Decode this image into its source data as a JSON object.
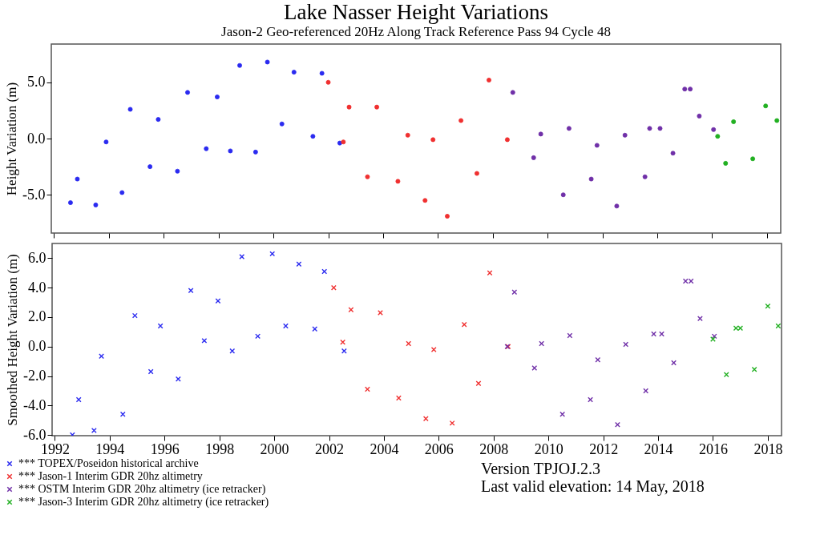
{
  "chart_data": [
    {
      "type": "scatter",
      "title": "Lake Nasser Height Variations",
      "subtitle": "Jason-2 Geo-referenced 20Hz Along Track Reference Pass  94 Cycle  48",
      "ylabel": "Height Variation (m)",
      "marker": "circle",
      "tick_labels": "y",
      "xlim": [
        1991.9,
        2018.5
      ],
      "xticks": [
        1992,
        1994,
        1996,
        1998,
        2000,
        2002,
        2004,
        2006,
        2008,
        2010,
        2012,
        2014,
        2016,
        2018
      ],
      "ylim": [
        -8.4,
        8.4
      ],
      "yticks": [
        {
          "value": -5,
          "label": "-5.0"
        },
        {
          "value": 0,
          "label": "0.0"
        },
        {
          "value": 5,
          "label": "5.0"
        }
      ],
      "series": [
        {
          "color": "#2b2bf0",
          "x": [
            1992.6,
            1992.85,
            1993.52,
            1993.9,
            1994.48,
            1994.78,
            1995.5,
            1995.8,
            1996.5,
            1996.87,
            1997.55,
            1997.95,
            1998.43,
            1998.77,
            1999.35,
            1999.78,
            2000.31,
            2000.75,
            2001.44,
            2001.77,
            2002.42
          ],
          "values": [
            -5.7,
            -3.6,
            -5.9,
            -0.3,
            -4.8,
            2.6,
            -2.5,
            1.7,
            -2.9,
            4.1,
            -0.9,
            3.7,
            -1.1,
            6.5,
            -1.2,
            6.8,
            1.3,
            5.9,
            0.2,
            5.8,
            -0.4
          ]
        },
        {
          "color": "#f03030",
          "x": [
            2002.0,
            2002.55,
            2002.76,
            2003.43,
            2003.77,
            2004.54,
            2004.9,
            2005.53,
            2005.82,
            2006.34,
            2006.84,
            2007.42,
            2007.86,
            2008.53
          ],
          "values": [
            5.0,
            -0.3,
            2.8,
            -3.4,
            2.8,
            -3.8,
            0.3,
            -5.5,
            -0.1,
            -6.9,
            1.6,
            -3.1,
            5.2,
            -0.1
          ]
        },
        {
          "color": "#7030a8",
          "x": [
            2008.73,
            2009.49,
            2009.75,
            2010.57,
            2010.78,
            2011.59,
            2011.8,
            2012.52,
            2012.82,
            2013.55,
            2013.72,
            2014.1,
            2014.57,
            2015.0,
            2015.2,
            2015.53,
            2016.05
          ],
          "values": [
            4.1,
            -1.7,
            0.4,
            -5.0,
            0.9,
            -3.6,
            -0.6,
            -6.0,
            0.3,
            -3.4,
            0.9,
            0.9,
            -1.3,
            4.4,
            4.4,
            2.0,
            0.8
          ]
        },
        {
          "color": "#22b022",
          "x": [
            2016.2,
            2016.49,
            2016.78,
            2017.48,
            2017.95,
            2018.36
          ],
          "values": [
            0.2,
            -2.2,
            1.5,
            -1.8,
            2.9,
            1.6
          ]
        }
      ]
    },
    {
      "type": "scatter",
      "ylabel": "Smoothed Height Variation (m)",
      "marker": "cross",
      "legend": "bottom left",
      "annotations": [
        "Version TPJOJ.2.3",
        "Last valid elevation: 14 May, 2018"
      ],
      "xlim": [
        1991.9,
        2018.5
      ],
      "xticks": [
        1992,
        1994,
        1996,
        1998,
        2000,
        2002,
        2004,
        2006,
        2008,
        2010,
        2012,
        2014,
        2016,
        2018
      ],
      "ylim": [
        -6.05,
        7.0
      ],
      "yticks": [
        {
          "value": -6,
          "label": "-6.0"
        },
        {
          "value": -4,
          "label": "-4.0"
        },
        {
          "value": -2,
          "label": "-2.0"
        },
        {
          "value": 0,
          "label": "0.0"
        },
        {
          "value": 2,
          "label": "2.0"
        },
        {
          "value": 4,
          "label": "4.0"
        },
        {
          "value": 6,
          "label": "6.0"
        }
      ],
      "series": [
        {
          "name": "*** TOPEX/Poseidon historical archive",
          "color": "#2b2bf0",
          "x": [
            1992.64,
            1992.87,
            1993.43,
            1993.7,
            1994.48,
            1994.92,
            1995.5,
            1995.85,
            1996.5,
            1996.96,
            1997.45,
            1997.95,
            1998.47,
            1998.82,
            1999.4,
            1999.93,
            2000.42,
            2000.9,
            2001.48,
            2001.83,
            2002.55
          ],
          "values": [
            -6.0,
            -3.6,
            -5.7,
            -0.65,
            -4.6,
            2.1,
            -1.7,
            1.4,
            -2.2,
            3.8,
            0.4,
            3.1,
            -0.3,
            6.1,
            0.7,
            6.3,
            1.4,
            5.6,
            1.2,
            5.1,
            -0.3
          ]
        },
        {
          "name": "*** Jason-1 Interim GDR 20hz altimetry",
          "color": "#f03030",
          "x": [
            2002.17,
            2002.5,
            2002.8,
            2003.4,
            2003.87,
            2004.54,
            2004.9,
            2005.53,
            2005.82,
            2006.49,
            2006.93,
            2007.45,
            2007.86,
            2008.53
          ],
          "values": [
            4.0,
            0.3,
            2.5,
            -2.9,
            2.3,
            -3.5,
            0.2,
            -4.9,
            -0.2,
            -5.2,
            1.5,
            -2.5,
            5.0,
            0.0
          ]
        },
        {
          "name": "*** OSTM  Interim GDR 20hz altimetry (ice retracker)",
          "color": "#7030a8",
          "x": [
            2008.5,
            2008.76,
            2009.49,
            2009.75,
            2010.51,
            2010.78,
            2011.53,
            2011.8,
            2012.52,
            2012.82,
            2013.55,
            2013.84,
            2014.13,
            2014.57,
            2015.0,
            2015.2,
            2015.53,
            2016.05
          ],
          "values": [
            0.0,
            3.7,
            -1.45,
            0.2,
            -4.6,
            0.75,
            -3.6,
            -0.9,
            -5.3,
            0.15,
            -3.0,
            0.85,
            0.85,
            -1.1,
            4.45,
            4.45,
            1.9,
            0.7
          ]
        },
        {
          "name": "*** Jason-3  Interim GDR 20hz altimetry (ice retracker)",
          "color": "#22b022",
          "x": [
            2016.0,
            2016.49,
            2016.84,
            2017.0,
            2017.51,
            2018.0,
            2018.38
          ],
          "values": [
            0.5,
            -1.9,
            1.25,
            1.25,
            -1.55,
            2.75,
            1.4
          ]
        }
      ]
    }
  ]
}
